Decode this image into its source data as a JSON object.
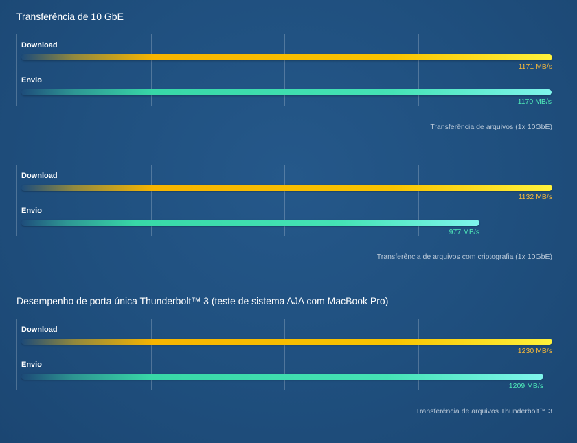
{
  "chart_data": [
    {
      "type": "bar",
      "orientation": "horizontal",
      "title": "Transferência de 10 GbE",
      "categories": [
        "Download",
        "Envio"
      ],
      "values": [
        1171,
        1170
      ],
      "value_labels": [
        "1171 MB/s",
        "1170 MB/s"
      ],
      "unit": "MB/s",
      "xlim": [
        0,
        1171
      ],
      "grid": true,
      "caption": "Transferência de arquivos (1x 10GbE)"
    },
    {
      "type": "bar",
      "orientation": "horizontal",
      "title": "",
      "categories": [
        "Download",
        "Envio"
      ],
      "values": [
        1132,
        977
      ],
      "value_labels": [
        "1132 MB/s",
        "977 MB/s"
      ],
      "unit": "MB/s",
      "xlim": [
        0,
        1132
      ],
      "grid": true,
      "caption": "Transferência de arquivos com criptografia (1x 10GbE)"
    },
    {
      "type": "bar",
      "orientation": "horizontal",
      "title": "Desempenho de porta única Thunderbolt™ 3 (teste de sistema AJA com MacBook Pro)",
      "categories": [
        "Download",
        "Envio"
      ],
      "values": [
        1230,
        1209
      ],
      "value_labels": [
        "1230 MB/s",
        "1209 MB/s"
      ],
      "unit": "MB/s",
      "xlim": [
        0,
        1230
      ],
      "grid": true,
      "caption": "Transferência de arquivos Thunderbolt™ 3"
    }
  ],
  "colors": {
    "background": "#21527f",
    "download": "#f9c400",
    "upload": "#45e3b5",
    "download_label": "#f6b83a",
    "upload_label": "#4ee8b8"
  }
}
